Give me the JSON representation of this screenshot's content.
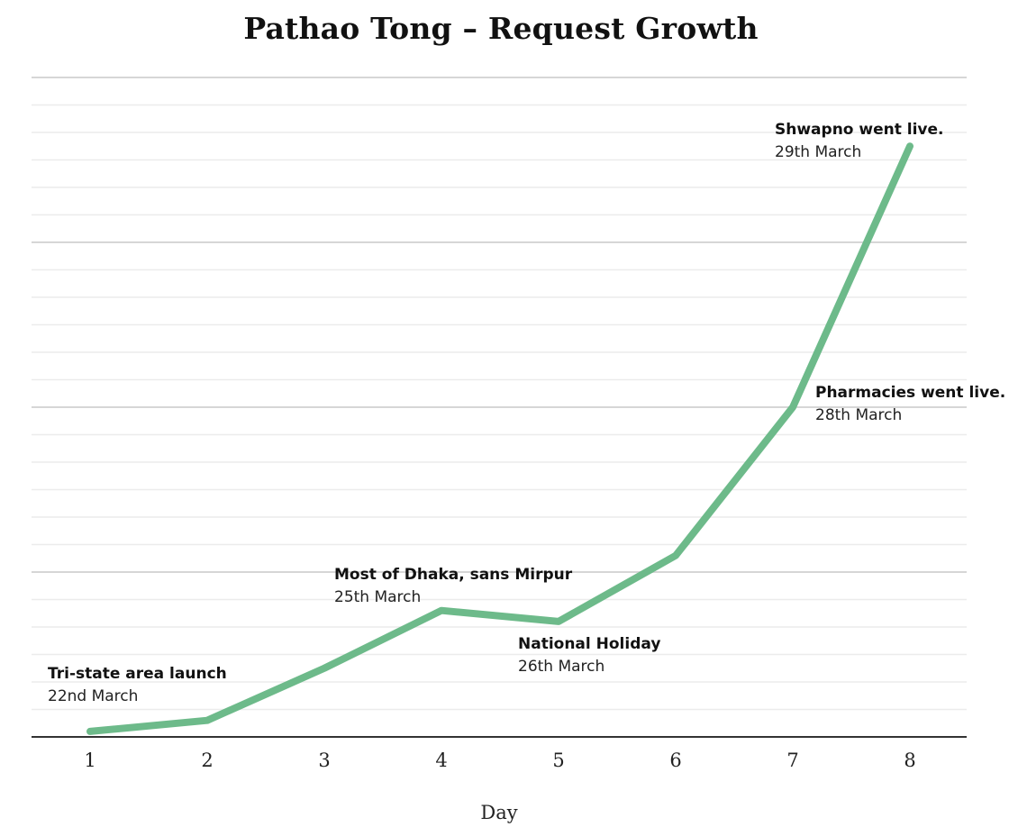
{
  "chart_data": {
    "type": "line",
    "title": "Pathao Tong – Request Growth",
    "xlabel": "Day",
    "ylabel": "",
    "x": [
      1,
      2,
      3,
      4,
      5,
      6,
      7,
      8
    ],
    "series": [
      {
        "values": [
          2,
          6,
          25,
          46,
          42,
          66,
          120,
          215
        ]
      }
    ],
    "ylim": [
      0,
      240
    ],
    "grid": true,
    "line_color": "#6dba8a",
    "annotations": [
      {
        "x": 1,
        "title": "Tri-state area launch",
        "date": "22nd March"
      },
      {
        "x": 4,
        "title": "Most of Dhaka, sans Mirpur",
        "date": "25th March"
      },
      {
        "x": 5,
        "title": "National Holiday",
        "date": "26th March"
      },
      {
        "x": 7,
        "title": "Pharmacies went live.",
        "date": "28th March"
      },
      {
        "x": 8,
        "title": "Shwapno went live.",
        "date": "29th March"
      }
    ]
  }
}
